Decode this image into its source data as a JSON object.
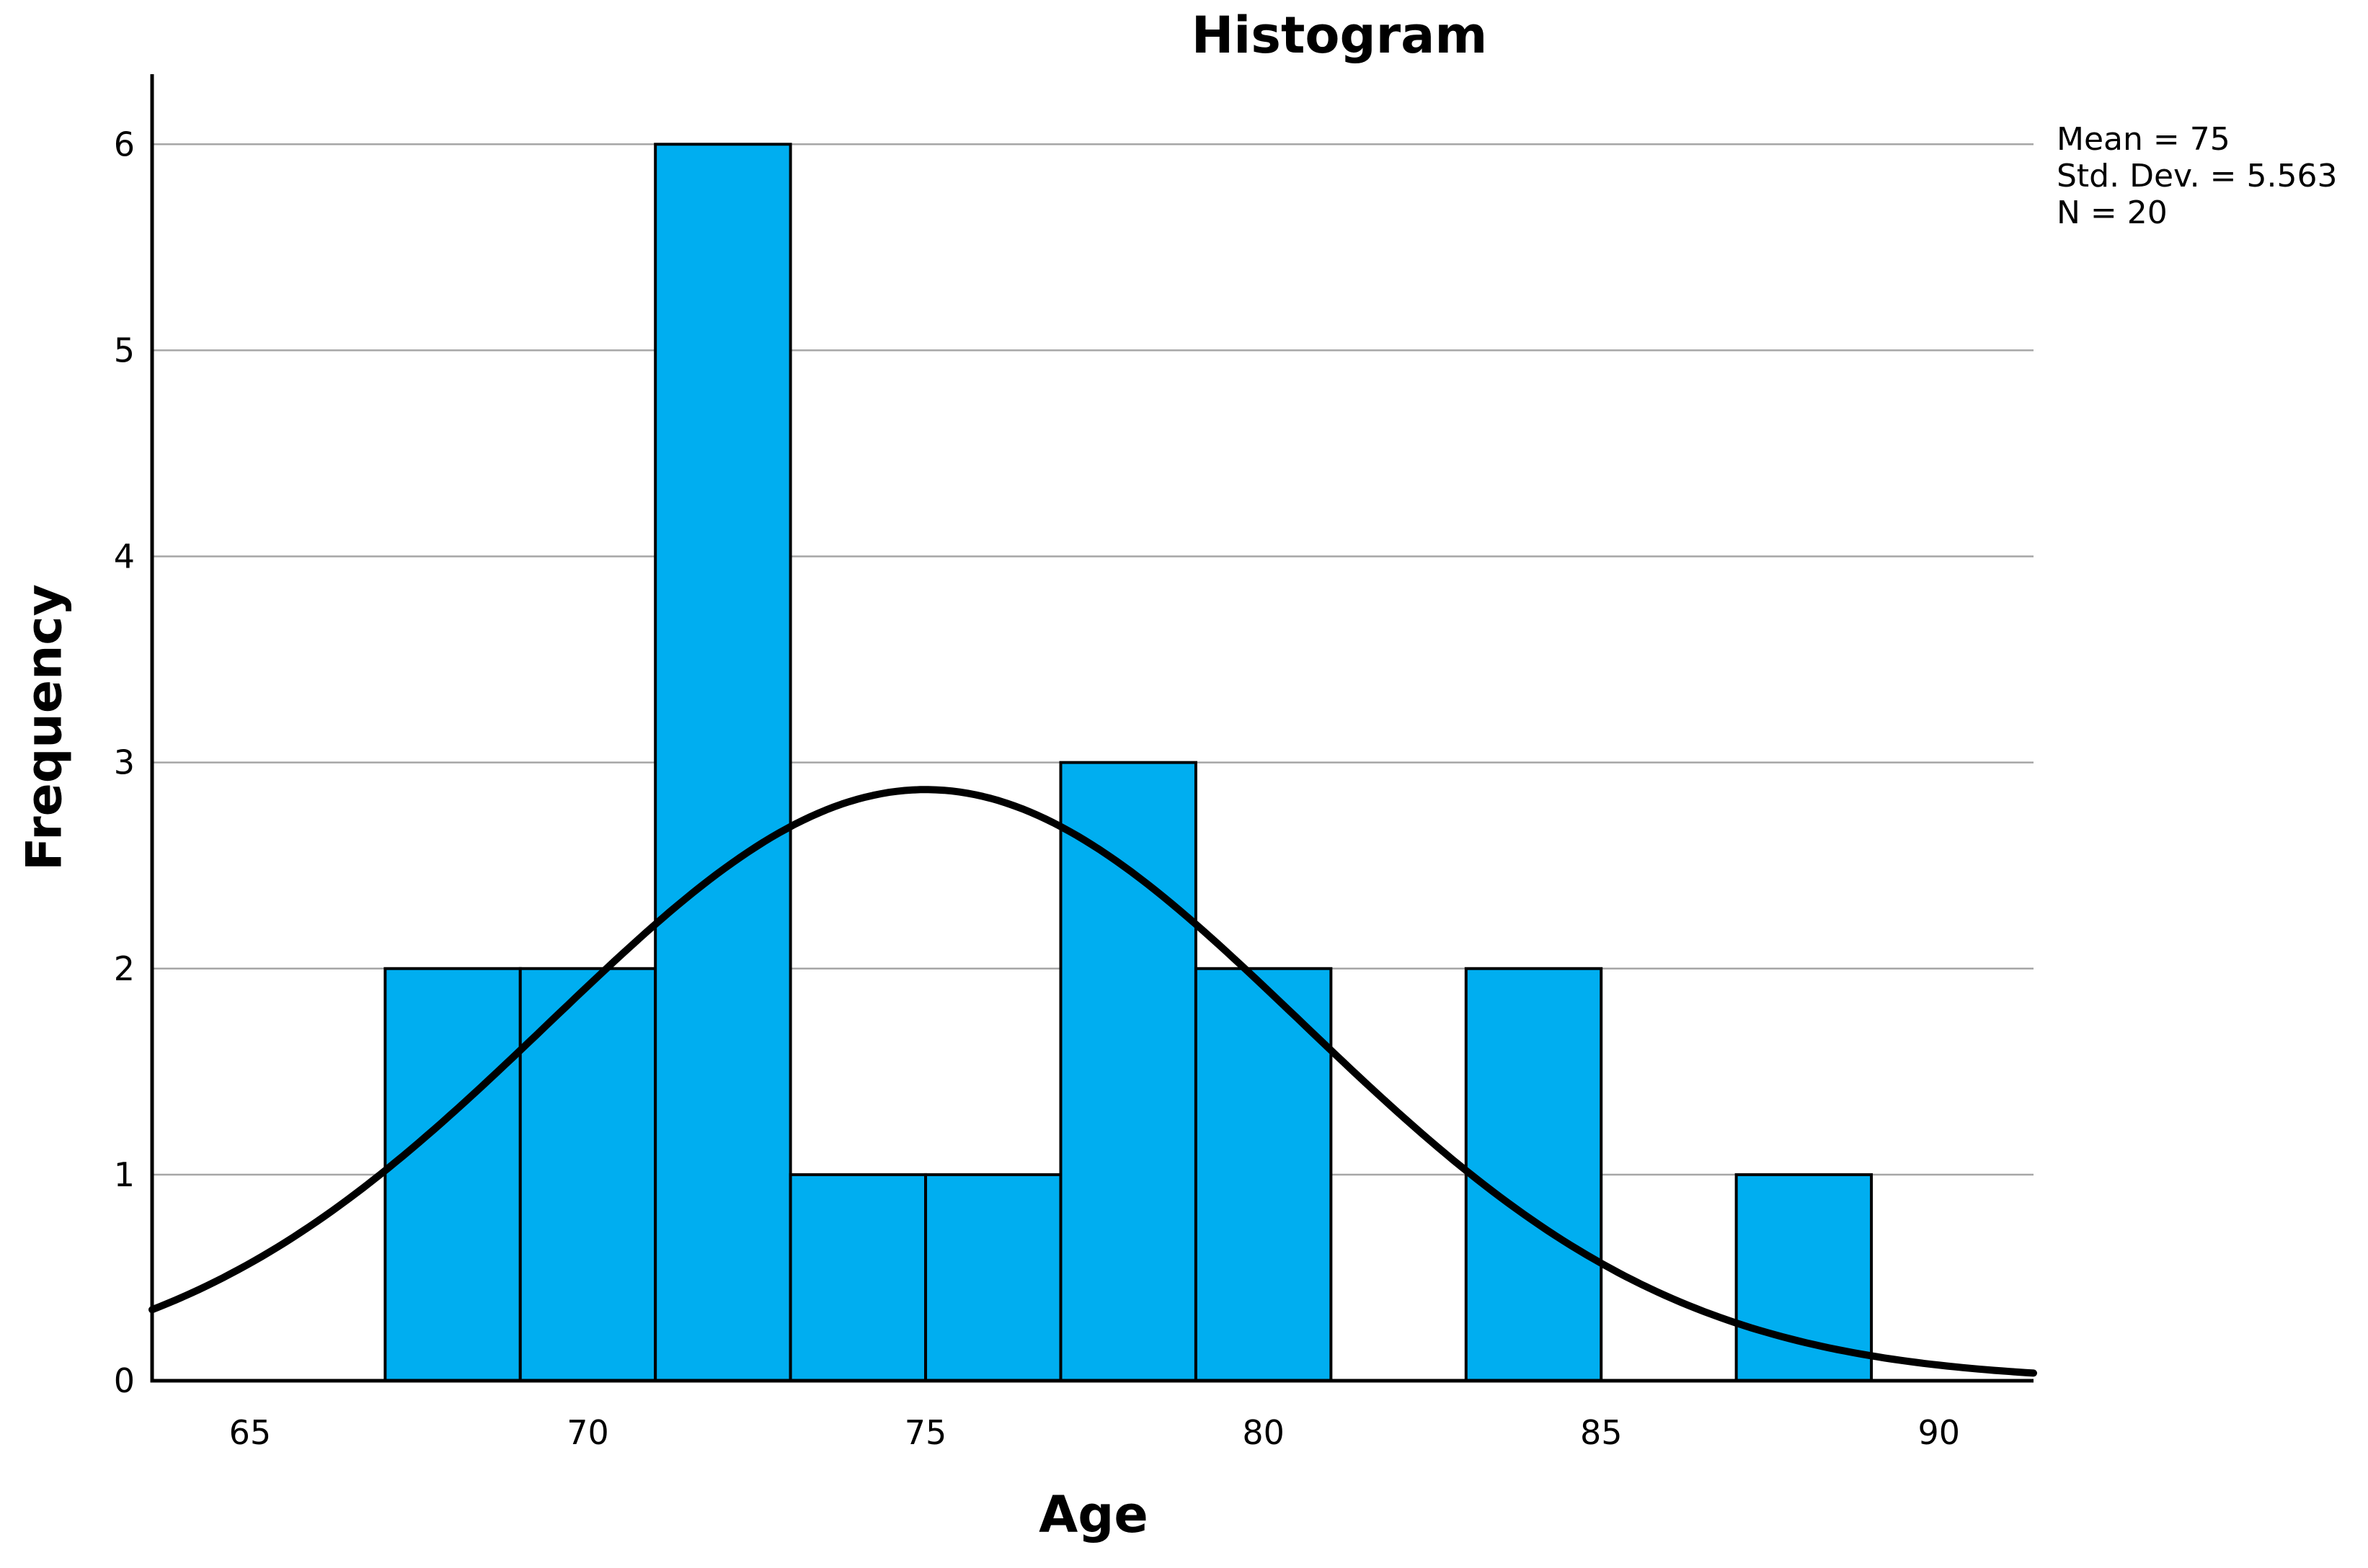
{
  "title": "Histogram",
  "axis_titles": {
    "x": "Age",
    "y": "Frequency"
  },
  "stats_box": {
    "line1": "Mean = 75",
    "line2": "Std. Dev. = 5.563",
    "line3": "N = 20"
  },
  "chart_data": {
    "type": "bar",
    "subtype": "histogram-with-normal-curve",
    "title": "Histogram",
    "xlabel": "Age",
    "ylabel": "Frequency",
    "x_ticks": [
      65,
      70,
      75,
      80,
      85,
      90
    ],
    "y_ticks": [
      0,
      1,
      2,
      3,
      4,
      5,
      6
    ],
    "xlim": [
      63.55,
      91.4
    ],
    "ylim": [
      0,
      6.34
    ],
    "grid": "horizontal gridlines at y = 1..6 only",
    "legend_position": "none",
    "bin_width": 2,
    "bins": [
      {
        "start": 67,
        "end": 69,
        "count": 2
      },
      {
        "start": 69,
        "end": 71,
        "count": 2
      },
      {
        "start": 71,
        "end": 73,
        "count": 6
      },
      {
        "start": 73,
        "end": 75,
        "count": 1
      },
      {
        "start": 75,
        "end": 77,
        "count": 1
      },
      {
        "start": 77,
        "end": 79,
        "count": 3
      },
      {
        "start": 79,
        "end": 81,
        "count": 2
      },
      {
        "start": 81,
        "end": 83,
        "count": 0
      },
      {
        "start": 83,
        "end": 85,
        "count": 2
      },
      {
        "start": 85,
        "end": 87,
        "count": 0
      },
      {
        "start": 87,
        "end": 89,
        "count": 1
      }
    ],
    "normal_curve": {
      "mean": 75,
      "std_dev": 5.563,
      "n": 20,
      "peak_height": 2.87
    },
    "annotation_lines": [
      "Mean = 75",
      "Std. Dev. = 5.563",
      "N = 20"
    ],
    "colors": {
      "bar_fill": "#00AEF0",
      "bar_stroke": "#000000",
      "curve": "#000000",
      "gridline": "#A6A6A6",
      "axis": "#000000",
      "text": "#000000",
      "background": "#FFFFFF"
    }
  }
}
